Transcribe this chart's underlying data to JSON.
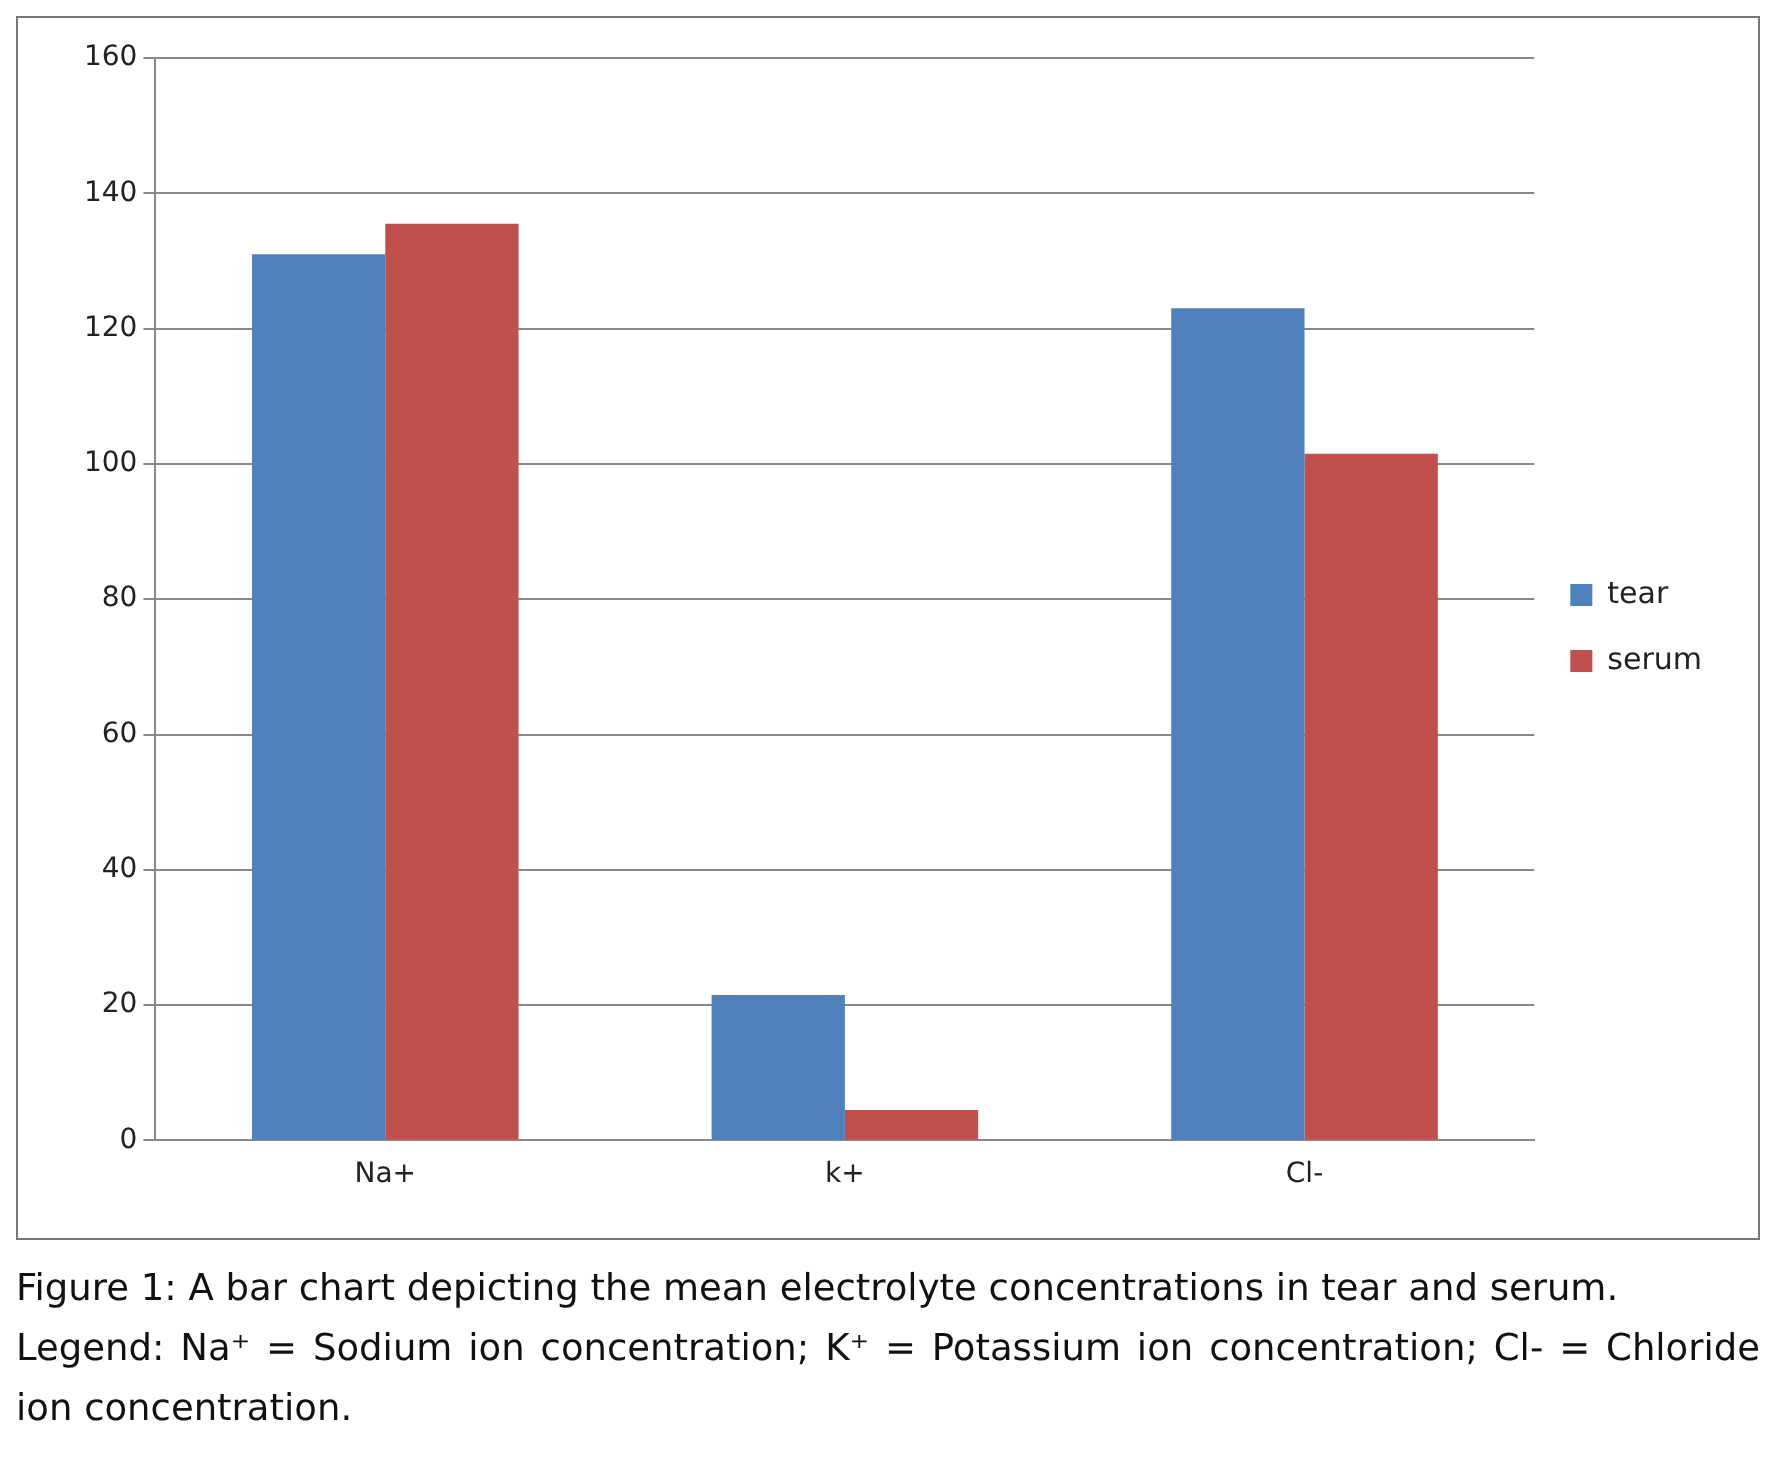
{
  "chart_data": {
    "type": "bar",
    "categories": [
      "Na+",
      "k+",
      "Cl-"
    ],
    "series": [
      {
        "name": "tear",
        "color": "#4f81bd",
        "values": [
          131,
          21.5,
          123
        ]
      },
      {
        "name": "serum",
        "color": "#c0504d",
        "values": [
          135.5,
          4.5,
          101.5
        ]
      }
    ],
    "ylim": [
      0,
      160
    ],
    "yticks": [
      0,
      20,
      40,
      60,
      80,
      100,
      120,
      140,
      160
    ],
    "grid": "y",
    "legend": "right",
    "annotations": [
      "Figure 1: A bar chart depicting the mean electrolyte concentrations in tear and serum.",
      "Legend: Na⁺ = Sodium ion concentration; K⁺ = Potassium ion concentration; Cl- = Chloride ion concentration."
    ]
  }
}
